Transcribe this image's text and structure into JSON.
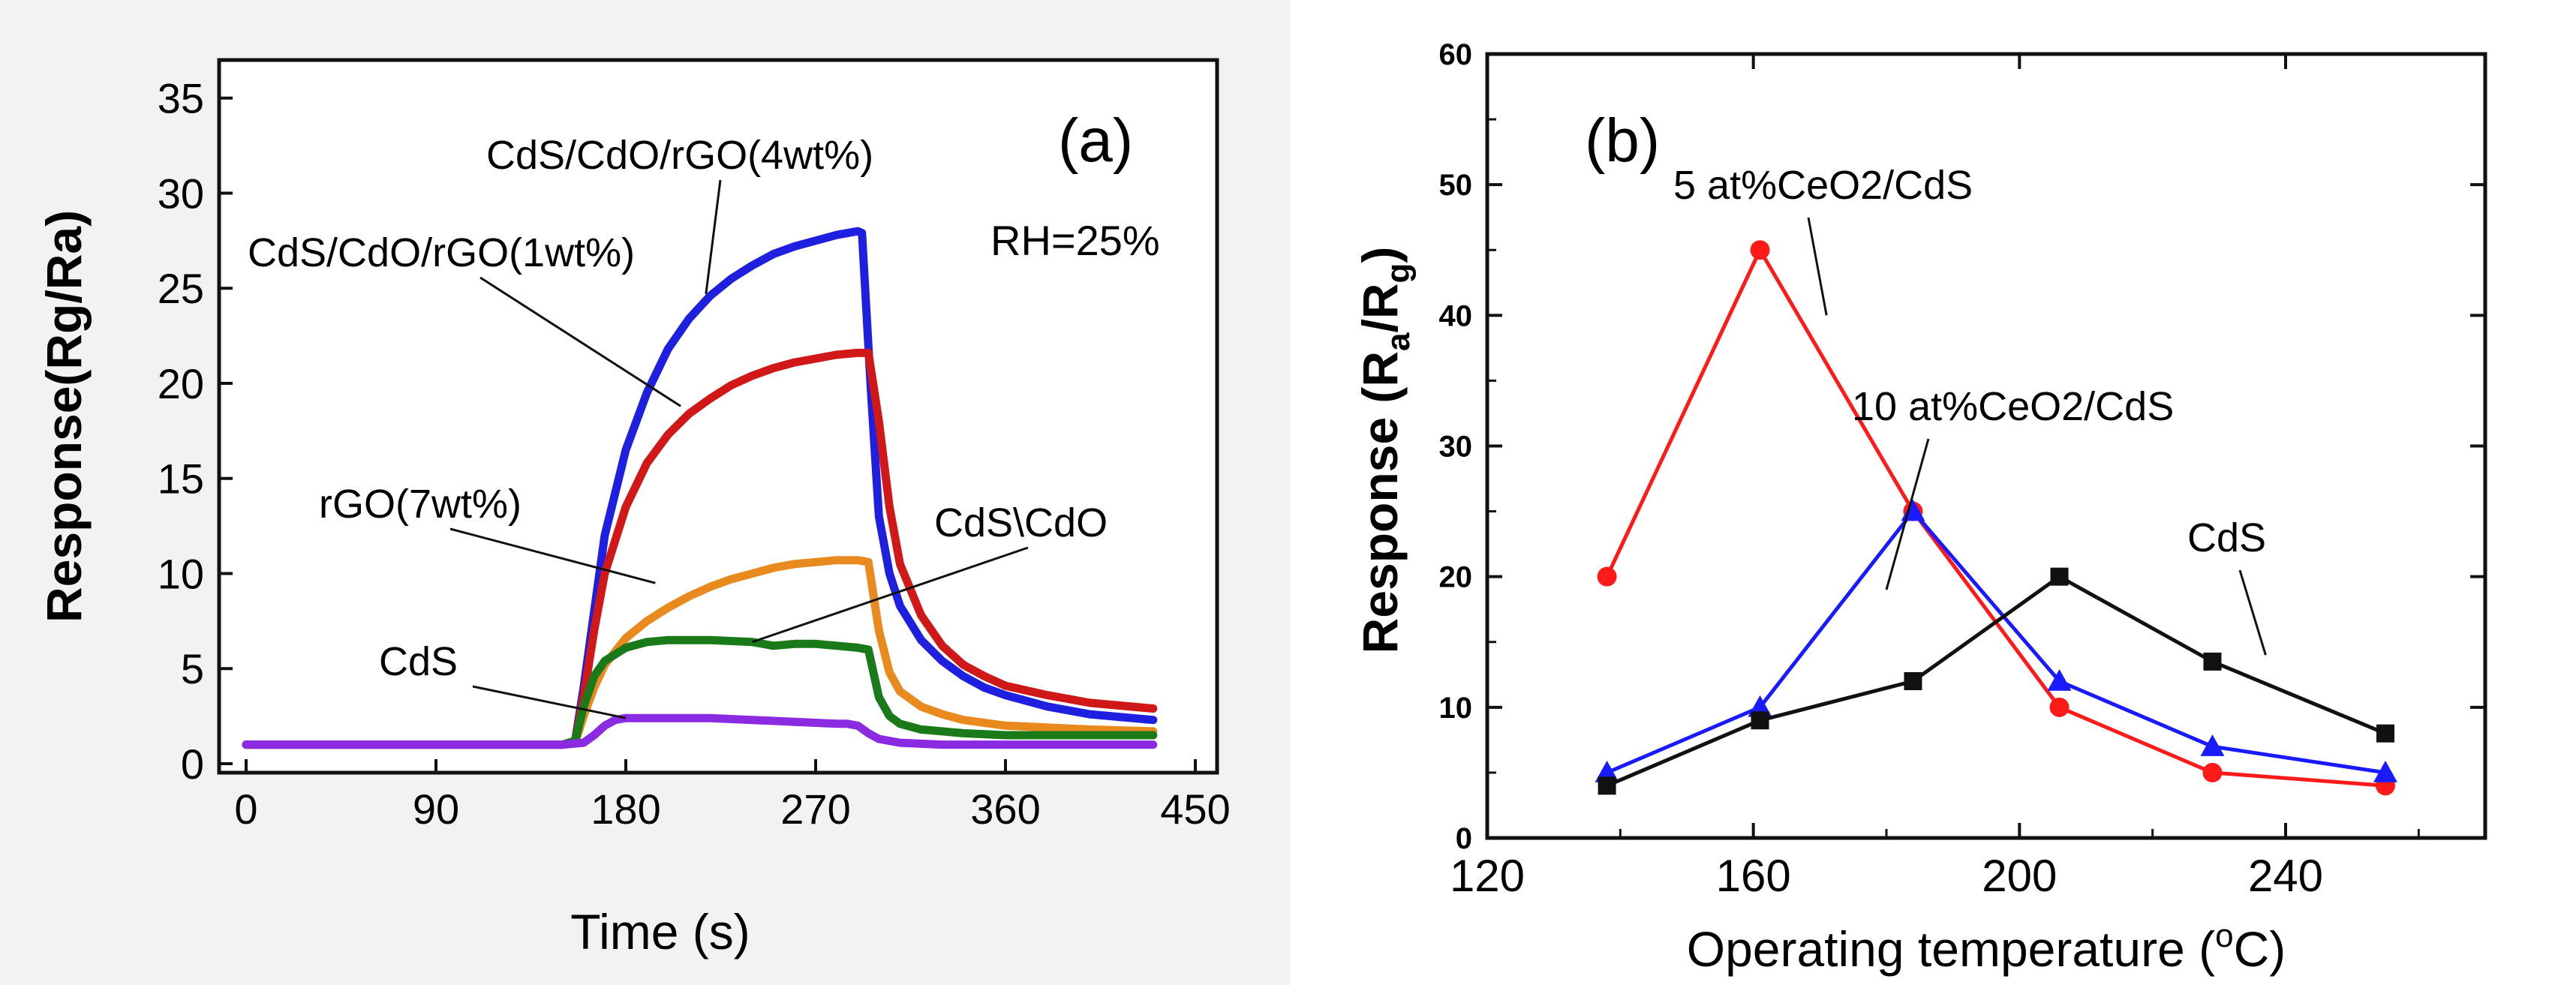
{
  "chart_data": [
    {
      "panel": "(a)",
      "type": "line",
      "title": "",
      "xlabel": "Time (s)",
      "ylabel": "Response(Rg/Ra)",
      "xlim": [
        0,
        450
      ],
      "ylim": [
        0,
        37
      ],
      "xticks": [
        0,
        90,
        180,
        270,
        360,
        450
      ],
      "yticks": [
        0,
        5,
        10,
        15,
        20,
        25,
        30,
        35
      ],
      "annotation": "RH=25%",
      "series": [
        {
          "name": "CdS/CdO/rGO(4wt%)",
          "color": "#1f1fe0",
          "x": [
            0,
            150,
            156,
            160,
            165,
            170,
            180,
            190,
            200,
            210,
            220,
            230,
            240,
            250,
            260,
            270,
            280,
            290,
            292,
            296,
            300,
            305,
            310,
            320,
            330,
            340,
            350,
            360,
            380,
            400,
            430
          ],
          "y": [
            1,
            1,
            1.2,
            4,
            8,
            12,
            16.5,
            19.5,
            21.8,
            23.4,
            24.6,
            25.5,
            26.2,
            26.8,
            27.2,
            27.5,
            27.8,
            28,
            27.9,
            20,
            13,
            10,
            8.3,
            6.5,
            5.4,
            4.6,
            4,
            3.6,
            3,
            2.6,
            2.3
          ]
        },
        {
          "name": "CdS/CdO/rGO(1wt%)",
          "color": "#d01818",
          "x": [
            0,
            150,
            156,
            160,
            165,
            170,
            180,
            190,
            200,
            210,
            220,
            230,
            240,
            250,
            260,
            270,
            280,
            290,
            295,
            300,
            305,
            310,
            320,
            330,
            340,
            350,
            360,
            380,
            400,
            430
          ],
          "y": [
            1,
            1,
            1.2,
            3.5,
            7,
            10,
            13.5,
            15.8,
            17.3,
            18.4,
            19.2,
            19.9,
            20.4,
            20.8,
            21.1,
            21.3,
            21.5,
            21.6,
            21.6,
            18,
            13.5,
            10.5,
            7.8,
            6.2,
            5.2,
            4.6,
            4.1,
            3.6,
            3.2,
            2.9
          ]
        },
        {
          "name": "rGO(7wt%)",
          "color": "#e88a1e",
          "x": [
            0,
            150,
            156,
            160,
            165,
            170,
            180,
            190,
            200,
            210,
            220,
            230,
            240,
            250,
            260,
            270,
            280,
            290,
            295,
            300,
            305,
            310,
            320,
            330,
            340,
            360,
            380,
            400,
            430
          ],
          "y": [
            1,
            1,
            1.1,
            2.5,
            4,
            5.2,
            6.6,
            7.5,
            8.2,
            8.8,
            9.3,
            9.7,
            10,
            10.3,
            10.5,
            10.6,
            10.7,
            10.7,
            10.6,
            7,
            4.8,
            3.8,
            3,
            2.6,
            2.3,
            2,
            1.9,
            1.8,
            1.7
          ]
        },
        {
          "name": "CdS\\CdO",
          "color": "#1a7a1a",
          "x": [
            0,
            150,
            156,
            160,
            165,
            170,
            180,
            190,
            200,
            220,
            240,
            250,
            260,
            270,
            280,
            290,
            295,
            300,
            305,
            310,
            320,
            340,
            360,
            400,
            430
          ],
          "y": [
            1,
            1,
            1.2,
            3,
            4.6,
            5.4,
            6.1,
            6.4,
            6.5,
            6.5,
            6.4,
            6.2,
            6.3,
            6.3,
            6.2,
            6.1,
            6,
            3.5,
            2.5,
            2.1,
            1.8,
            1.6,
            1.5,
            1.5,
            1.5
          ]
        },
        {
          "name": "CdS",
          "color": "#8a2be2",
          "x": [
            0,
            150,
            160,
            165,
            170,
            175,
            180,
            200,
            220,
            240,
            260,
            280,
            285,
            290,
            295,
            300,
            310,
            330,
            360,
            400,
            430
          ],
          "y": [
            1,
            1,
            1.1,
            1.5,
            2,
            2.3,
            2.4,
            2.4,
            2.4,
            2.3,
            2.2,
            2.1,
            2.1,
            2,
            1.6,
            1.3,
            1.1,
            1,
            1,
            1,
            1
          ]
        }
      ],
      "labels": [
        {
          "text": "CdS/CdO/rGO(4wt%)",
          "series": "CdS/CdO/rGO(4wt%)",
          "point": [
            218,
            24.7
          ]
        },
        {
          "text": "CdS/CdO/rGO(1wt%)",
          "series": "CdS/CdO/rGO(1wt%)",
          "point": [
            206,
            18.8
          ]
        },
        {
          "text": "rGO(7wt%)",
          "series": "rGO(7wt%)",
          "point": [
            194,
            9.5
          ]
        },
        {
          "text": "CdS\\CdO",
          "series": "CdS\\CdO",
          "point": [
            240,
            6.4
          ]
        },
        {
          "text": "CdS",
          "series": "CdS",
          "point": [
            180,
            2.4
          ]
        }
      ]
    },
    {
      "panel": "(b)",
      "type": "line",
      "title": "",
      "xlabel": "Operating temperature (oC)",
      "ylabel": "Response (Ra/Rg)",
      "xlim": [
        120,
        270
      ],
      "ylim": [
        0,
        60
      ],
      "xticks": [
        120,
        160,
        200,
        240
      ],
      "yticks": [
        0,
        10,
        20,
        30,
        40,
        50,
        60
      ],
      "series": [
        {
          "name": "5 at%CeO2/CdS",
          "color": "#ff1a1a",
          "marker": "circle",
          "x": [
            138,
            161,
            184,
            206,
            229,
            255
          ],
          "y": [
            20,
            45,
            25,
            10,
            5,
            4
          ]
        },
        {
          "name": "10 at%CeO2/CdS",
          "color": "#1a1aff",
          "marker": "triangle",
          "x": [
            138,
            161,
            184,
            206,
            229,
            255
          ],
          "y": [
            5,
            10,
            25,
            12,
            7,
            5
          ]
        },
        {
          "name": "CdS",
          "color": "#111111",
          "marker": "square",
          "x": [
            138,
            161,
            184,
            206,
            229,
            255
          ],
          "y": [
            4,
            9,
            12,
            20,
            13.5,
            8
          ]
        }
      ],
      "labels": [
        {
          "text": "5 at%CeO2/CdS",
          "series": "5 at%CeO2/CdS",
          "point": [
            171,
            40
          ]
        },
        {
          "text": "10 at%CeO2/CdS",
          "series": "10 at%CeO2/CdS",
          "point": [
            180,
            19
          ]
        },
        {
          "text": "CdS",
          "series": "CdS",
          "point": [
            237,
            14
          ]
        }
      ]
    }
  ]
}
